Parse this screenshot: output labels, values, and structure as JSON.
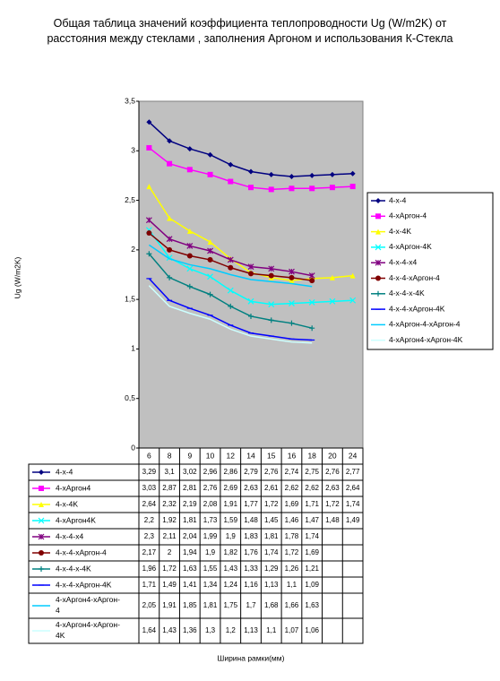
{
  "chart_data": {
    "type": "line",
    "title": "Общая таблица значений коэффициента теплопроводности Ug (W/m2K) от расстояния между стеклами , заполнения Аргоном и использования К-Стекла",
    "ylabel": "Ug (W/m2K)",
    "xlabel": "Ширина рамки(мм)",
    "categories": [
      "6",
      "8",
      "9",
      "10",
      "12",
      "14",
      "15",
      "16",
      "18",
      "20",
      "24"
    ],
    "ylim": [
      0,
      3.5
    ],
    "yticks": [
      0,
      {
        "value": 0.5,
        "label": "0,5"
      },
      1,
      {
        "value": 1.5,
        "label": "1,5"
      },
      2,
      {
        "value": 2.5,
        "label": "2,5"
      },
      3,
      {
        "value": 3.5,
        "label": "3,5"
      }
    ],
    "plot_background": "#c0c0c0",
    "legend": "right",
    "series": [
      {
        "name": "4-x-4",
        "table_label": "4-x-4",
        "color": "#000080",
        "marker": "diamond",
        "values": [
          3.29,
          3.1,
          3.02,
          2.96,
          2.86,
          2.79,
          2.76,
          2.74,
          2.75,
          2.76,
          2.77
        ],
        "value_labels": [
          "3,29",
          "3,1",
          "3,02",
          "2,96",
          "2,86",
          "2,79",
          "2,76",
          "2,74",
          "2,75",
          "2,76",
          "2,77"
        ]
      },
      {
        "name": "4-xАргон-4",
        "table_label": "4-xАргон4",
        "color": "#ff00ff",
        "marker": "square",
        "values": [
          3.03,
          2.87,
          2.81,
          2.76,
          2.69,
          2.63,
          2.61,
          2.62,
          2.62,
          2.63,
          2.64
        ],
        "value_labels": [
          "3,03",
          "2,87",
          "2,81",
          "2,76",
          "2,69",
          "2,63",
          "2,61",
          "2,62",
          "2,62",
          "2,63",
          "2,64"
        ]
      },
      {
        "name": "4-x-4K",
        "table_label": "4-x-4K",
        "color": "#ffff00",
        "marker": "triangle",
        "values": [
          2.64,
          2.32,
          2.19,
          2.08,
          1.91,
          1.77,
          1.72,
          1.69,
          1.71,
          1.72,
          1.74
        ],
        "value_labels": [
          "2,64",
          "2,32",
          "2,19",
          "2,08",
          "1,91",
          "1,77",
          "1,72",
          "1,69",
          "1,71",
          "1,72",
          "1,74"
        ]
      },
      {
        "name": "4-xАргон-4K",
        "table_label": "4-xАргон4K",
        "color": "#00ffff",
        "marker": "x",
        "values": [
          2.2,
          1.92,
          1.81,
          1.73,
          1.59,
          1.48,
          1.45,
          1.46,
          1.47,
          1.48,
          1.49
        ],
        "value_labels": [
          "2,2",
          "1,92",
          "1,81",
          "1,73",
          "1,59",
          "1,48",
          "1,45",
          "1,46",
          "1,47",
          "1,48",
          "1,49"
        ]
      },
      {
        "name": "4-x-4-x4",
        "table_label": "4-x-4-x4",
        "color": "#800080",
        "marker": "star",
        "values": [
          2.3,
          2.11,
          2.04,
          1.99,
          1.9,
          1.83,
          1.81,
          1.78,
          1.74,
          null,
          null
        ],
        "value_labels": [
          "2,3",
          "2,11",
          "2,04",
          "1,99",
          "1,9",
          "1,83",
          "1,81",
          "1,78",
          "1,74",
          null,
          null
        ]
      },
      {
        "name": "4-x-4-xАргон-4",
        "table_label": "4-x-4-xАргон-4",
        "color": "#800000",
        "marker": "circle",
        "values": [
          2.17,
          2,
          1.94,
          1.9,
          1.82,
          1.76,
          1.74,
          1.72,
          1.69,
          null,
          null
        ],
        "value_labels": [
          "2,17",
          "2",
          "1,94",
          "1,9",
          "1,82",
          "1,76",
          "1,74",
          "1,72",
          "1,69",
          null,
          null
        ]
      },
      {
        "name": "4-x-4-x-4K",
        "table_label": "4-x-4-x-4K",
        "color": "#008080",
        "marker": "plus",
        "values": [
          1.96,
          1.72,
          1.63,
          1.55,
          1.43,
          1.33,
          1.29,
          1.26,
          1.21,
          null,
          null
        ],
        "value_labels": [
          "1,96",
          "1,72",
          "1,63",
          "1,55",
          "1,43",
          "1,33",
          "1,29",
          "1,26",
          "1,21",
          null,
          null
        ]
      },
      {
        "name": "4-x-4-xАргон-4K",
        "table_label": "4-x-4-xАргон-4K",
        "color": "#0000ff",
        "marker": "dash",
        "values": [
          1.71,
          1.49,
          1.41,
          1.34,
          1.24,
          1.16,
          1.13,
          1.1,
          1.09,
          null,
          null
        ],
        "value_labels": [
          "1,71",
          "1,49",
          "1,41",
          "1,34",
          "1,24",
          "1,16",
          "1,13",
          "1,1",
          "1,09",
          null,
          null
        ]
      },
      {
        "name": "4-xАргон-4-xАргон-4",
        "table_label": "4-xАргон4-xАргон-4",
        "color": "#00ccff",
        "marker": "none",
        "values": [
          2.05,
          1.91,
          1.85,
          1.81,
          1.75,
          1.7,
          1.68,
          1.66,
          1.63,
          null,
          null
        ],
        "value_labels": [
          "2,05",
          "1,91",
          "1,85",
          "1,81",
          "1,75",
          "1,7",
          "1,68",
          "1,66",
          "1,63",
          null,
          null
        ]
      },
      {
        "name": "4-xАргон4-xАргон-4K",
        "table_label": "4-xАргон4-xАргон-4K",
        "color": "#ccffff",
        "marker": "none",
        "values": [
          1.64,
          1.43,
          1.36,
          1.3,
          1.2,
          1.13,
          1.1,
          1.07,
          1.06,
          null,
          null
        ],
        "value_labels": [
          "1,64",
          "1,43",
          "1,36",
          "1,3",
          "1,2",
          "1,13",
          "1,1",
          "1,07",
          "1,06",
          null,
          null
        ]
      }
    ]
  }
}
